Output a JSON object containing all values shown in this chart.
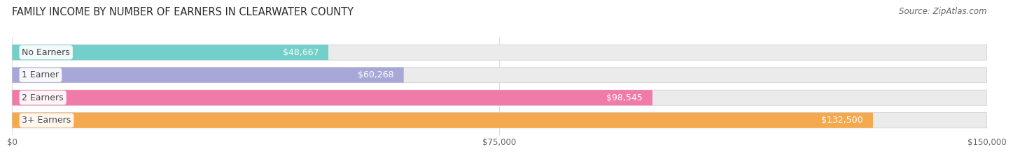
{
  "title": "FAMILY INCOME BY NUMBER OF EARNERS IN CLEARWATER COUNTY",
  "source": "Source: ZipAtlas.com",
  "categories": [
    "No Earners",
    "1 Earner",
    "2 Earners",
    "3+ Earners"
  ],
  "values": [
    48667,
    60268,
    98545,
    132500
  ],
  "labels": [
    "$48,667",
    "$60,268",
    "$98,545",
    "$132,500"
  ],
  "bar_colors": [
    "#72cfc9",
    "#a8a8d8",
    "#f07aa8",
    "#f5a94e"
  ],
  "bar_bg_colors": [
    "#ebebeb",
    "#ebebeb",
    "#ebebeb",
    "#ebebeb"
  ],
  "xlim": [
    0,
    150000
  ],
  "xticks": [
    0,
    75000,
    150000
  ],
  "xticklabels": [
    "$0",
    "$75,000",
    "$150,000"
  ],
  "background_color": "#ffffff",
  "bar_height": 0.68,
  "title_fontsize": 10.5,
  "label_fontsize": 9,
  "source_fontsize": 8.5,
  "cat_label_color": "#444444",
  "val_label_color_inside": "white",
  "val_label_color_outside": "#444444"
}
